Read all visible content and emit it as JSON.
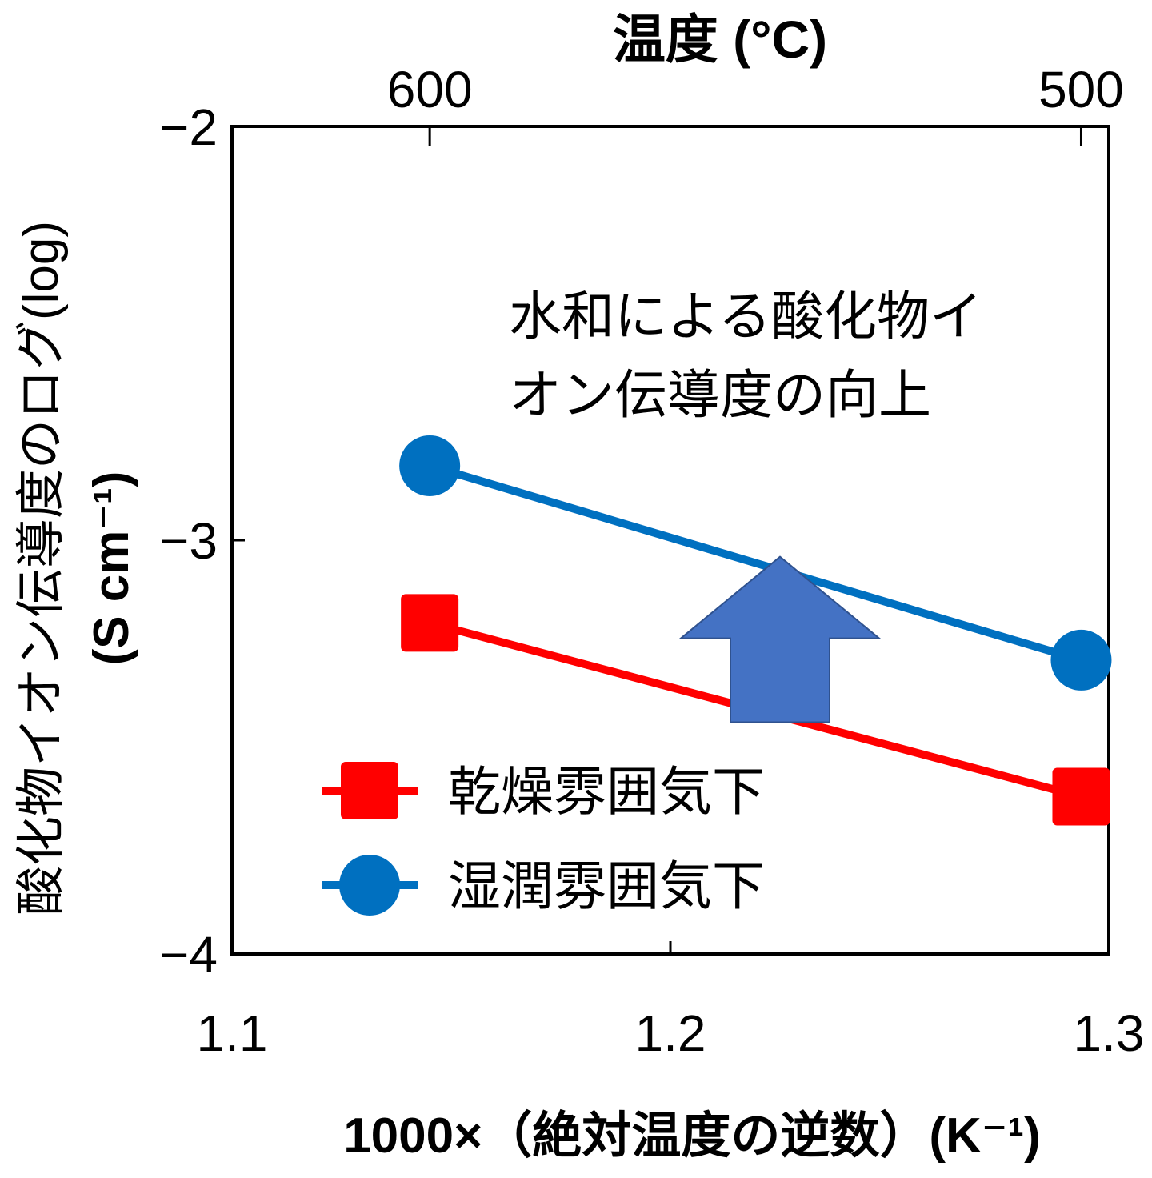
{
  "chart_data": {
    "type": "line",
    "top_axis": {
      "label": "温度 (°C)",
      "ticks": [
        {
          "x": 1.1451,
          "label": "600"
        },
        {
          "x": 1.2937,
          "label": "500"
        }
      ]
    },
    "xlabel": "1000×（絶対温度の逆数）(K⁻¹)",
    "ylabel_line1": "酸化物イオン伝導度のログ(log)",
    "ylabel_line2": "(S cm⁻¹)",
    "xlim": [
      1.1,
      1.3
    ],
    "ylim": [
      -4,
      -2
    ],
    "x_ticks": [
      {
        "value": 1.1,
        "label": "1.1"
      },
      {
        "value": 1.2,
        "label": "1.2"
      },
      {
        "value": 1.3,
        "label": "1.3"
      }
    ],
    "y_ticks": [
      {
        "value": -2,
        "label": "−2"
      },
      {
        "value": -3,
        "label": "−3"
      },
      {
        "value": -4,
        "label": "−4"
      }
    ],
    "annotation_line1": "水和による酸化物イ",
    "annotation_line2": "オン伝導度の向上",
    "series": [
      {
        "name": "乾燥雰囲気下",
        "marker": "square",
        "color": "#ff0000",
        "points": [
          [
            1.1451,
            -3.2
          ],
          [
            1.2937,
            -3.62
          ]
        ]
      },
      {
        "name": "湿潤雰囲気下",
        "marker": "circle",
        "color": "#0070c0",
        "points": [
          [
            1.1451,
            -2.82
          ],
          [
            1.2937,
            -3.29
          ]
        ]
      }
    ],
    "arrow": {
      "x": 1.225,
      "y_from": -3.44,
      "y_to": -3.04,
      "color": "#4472c4"
    },
    "grid": false,
    "legend_position": "bottom-left"
  }
}
